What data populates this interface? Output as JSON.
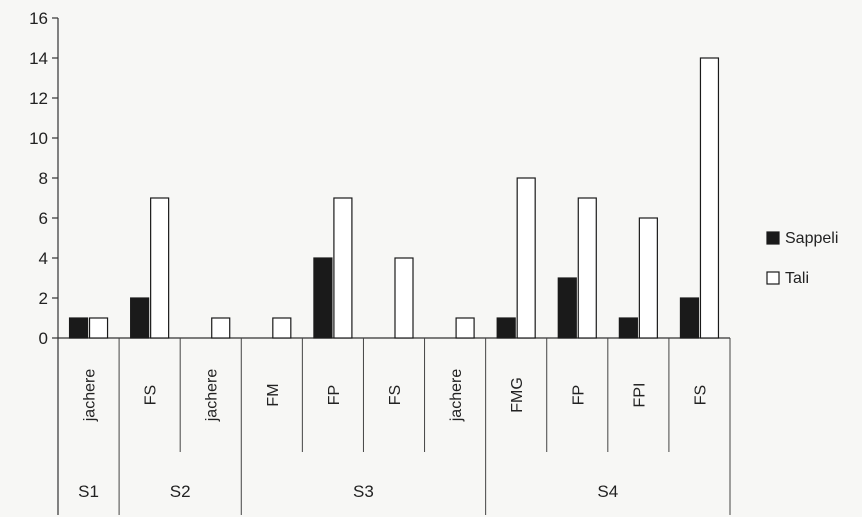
{
  "chart_data": {
    "type": "bar",
    "title": "",
    "xlabel": "",
    "ylabel": "",
    "ylim": [
      0,
      16
    ],
    "yticks": [
      0,
      2,
      4,
      6,
      8,
      10,
      12,
      14,
      16
    ],
    "grid": false,
    "legend_position": "right",
    "categories": [
      {
        "label": "jachere",
        "group": "S1"
      },
      {
        "label": "FS",
        "group": "S2"
      },
      {
        "label": "jachere",
        "group": "S2"
      },
      {
        "label": "FM",
        "group": "S3"
      },
      {
        "label": "FP",
        "group": "S3"
      },
      {
        "label": "FS",
        "group": "S3"
      },
      {
        "label": "jachere",
        "group": "S3"
      },
      {
        "label": "FMG",
        "group": "S4"
      },
      {
        "label": "FP",
        "group": "S4"
      },
      {
        "label": "FPI",
        "group": "S4"
      },
      {
        "label": "FS",
        "group": "S4"
      }
    ],
    "groups": [
      "S1",
      "S2",
      "S3",
      "S4"
    ],
    "series": [
      {
        "name": "Sappeli",
        "color": "#1a1a1a",
        "values": [
          1,
          2,
          0,
          0,
          4,
          0,
          0,
          1,
          3,
          1,
          2
        ]
      },
      {
        "name": "Tali",
        "color": "#ffffff",
        "values": [
          1,
          7,
          1,
          1,
          7,
          4,
          1,
          8,
          7,
          6,
          14
        ]
      }
    ]
  }
}
